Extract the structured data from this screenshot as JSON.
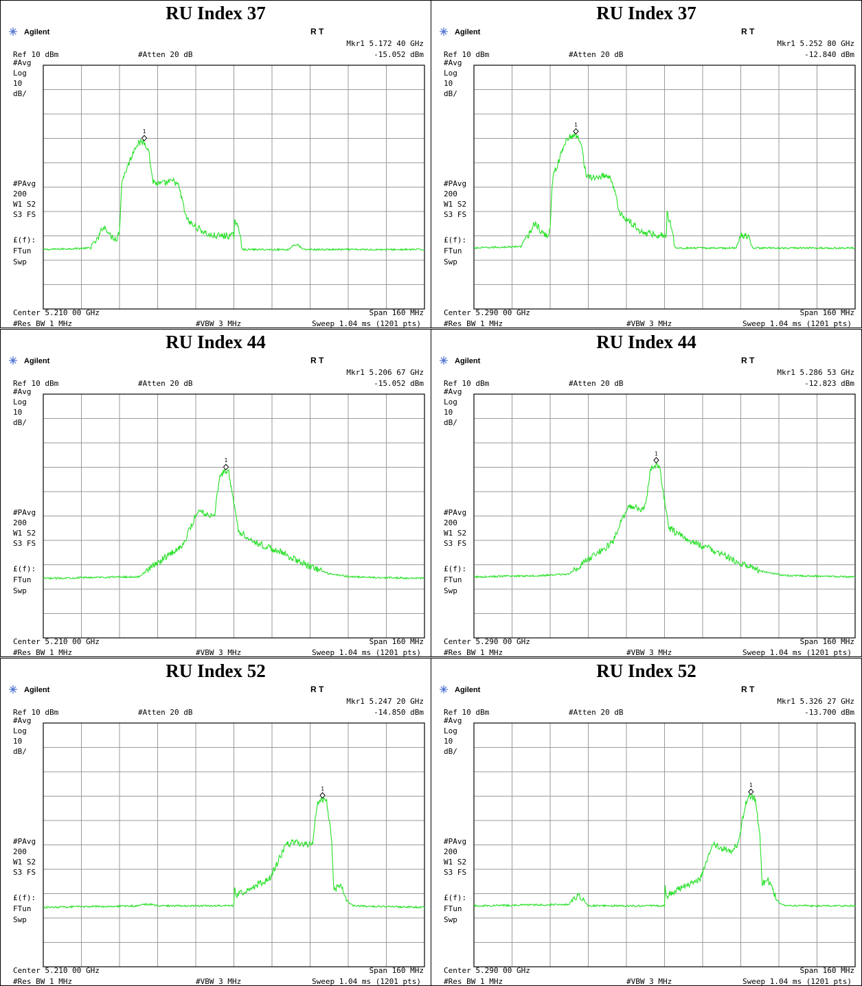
{
  "colors": {
    "trace": "#22e022",
    "grid": "#9a9a9a",
    "frame": "#000000",
    "text": "#000000"
  },
  "screen_common": {
    "brand": "Agilent",
    "brand_icon": "agilent-starburst-icon",
    "mode_flags": "R  T",
    "ref_level": "Ref 10 dBm",
    "attenuation": "#Atten 20 dB",
    "left_annotations": [
      "#Avg",
      "Log",
      "10",
      "dB/"
    ],
    "left_annotations_lower": [
      "#PAvg",
      "200",
      "W1  S2",
      "S3  FS"
    ],
    "left_annotations_bottom": [
      "£(f):",
      "FTun",
      "Swp"
    ],
    "span": "Span 160 MHz",
    "res_bw": "#Res BW 1 MHz",
    "vbw": "#VBW 3 MHz",
    "sweep": "Sweep 1.04 ms (1201 pts)",
    "marker_label": "1"
  },
  "chart_data": [
    {
      "type": "line",
      "panel_title": "RU Index 37",
      "center": "Center 5.210 00 GHz",
      "marker_freq": "Mkr1  5.172 40 GHz",
      "marker_level": "-15.052 dBm",
      "xlim_ghz": [
        5.13,
        5.29
      ],
      "ylim_dbm": [
        -70,
        10
      ],
      "marker_x": 5.1724,
      "marker_y": -15.052,
      "series": [
        {
          "x": [
            5.13,
            5.15,
            5.15,
            5.153,
            5.155,
            5.157,
            5.158,
            5.161,
            5.162,
            5.163,
            5.169,
            5.172,
            5.174,
            5.176,
            5.178,
            5.179,
            5.185,
            5.187,
            5.19,
            5.192,
            5.2,
            5.21,
            5.21,
            5.213,
            5.213,
            5.214,
            5.233,
            5.235,
            5.237,
            5.239,
            5.29
          ],
          "y": [
            -50.5,
            -50,
            -49,
            -47,
            -43,
            -44,
            -46,
            -47,
            -44,
            -28,
            -16,
            -15.1,
            -17,
            -28,
            -29,
            -29,
            -28,
            -30,
            -40,
            -42,
            -46,
            -46,
            -40,
            -46,
            -49.5,
            -50.5,
            -50.5,
            -49,
            -49,
            -50.5,
            -50.5
          ]
        }
      ]
    },
    {
      "type": "line",
      "panel_title": "RU Index 37",
      "center": "Center 5.290 00 GHz",
      "marker_freq": "Mkr1  5.252 80 GHz",
      "marker_level": "-12.840 dBm",
      "xlim_ghz": [
        5.21,
        5.37
      ],
      "ylim_dbm": [
        -70,
        10
      ],
      "marker_x": 5.2528,
      "marker_y": -12.84,
      "series": [
        {
          "x": [
            5.21,
            5.23,
            5.23,
            5.233,
            5.235,
            5.237,
            5.238,
            5.241,
            5.242,
            5.243,
            5.249,
            5.2528,
            5.255,
            5.257,
            5.259,
            5.26,
            5.266,
            5.268,
            5.271,
            5.273,
            5.281,
            5.291,
            5.291,
            5.294,
            5.294,
            5.295,
            5.32,
            5.322,
            5.325,
            5.327,
            5.37
          ],
          "y": [
            -50,
            -49.5,
            -48.5,
            -46,
            -42,
            -43,
            -45,
            -46,
            -43,
            -27,
            -14,
            -12.9,
            -15,
            -26,
            -27,
            -27,
            -26,
            -28,
            -38,
            -40,
            -45,
            -46,
            -38,
            -46,
            -49,
            -50,
            -50,
            -46,
            -46,
            -50,
            -50
          ]
        }
      ]
    },
    {
      "type": "line",
      "panel_title": "RU Index 44",
      "center": "Center 5.210 00 GHz",
      "marker_freq": "Mkr1  5.206 67 GHz",
      "marker_level": "-15.052 dBm",
      "xlim_ghz": [
        5.13,
        5.29
      ],
      "ylim_dbm": [
        -70,
        10
      ],
      "marker_x": 5.20667,
      "marker_y": -15.052,
      "series": [
        {
          "x": [
            5.13,
            5.16,
            5.17,
            5.175,
            5.182,
            5.188,
            5.19,
            5.195,
            5.198,
            5.2,
            5.202,
            5.204,
            5.20667,
            5.208,
            5.21,
            5.212,
            5.22,
            5.23,
            5.24,
            5.25,
            5.26,
            5.29
          ],
          "y": [
            -50.5,
            -50,
            -50,
            -47,
            -43,
            -40,
            -37,
            -28,
            -29,
            -30,
            -29,
            -17,
            -15.1,
            -16,
            -26,
            -35,
            -39,
            -42,
            -46,
            -49,
            -50,
            -50.5
          ]
        }
      ]
    },
    {
      "type": "line",
      "panel_title": "RU Index 44",
      "center": "Center 5.290 00 GHz",
      "marker_freq": "Mkr1  5.286 53 GHz",
      "marker_level": "-12.823 dBm",
      "xlim_ghz": [
        5.21,
        5.37
      ],
      "ylim_dbm": [
        -70,
        10
      ],
      "marker_x": 5.28653,
      "marker_y": -12.823,
      "series": [
        {
          "x": [
            5.21,
            5.24,
            5.25,
            5.255,
            5.262,
            5.268,
            5.27,
            5.275,
            5.278,
            5.28,
            5.282,
            5.284,
            5.28653,
            5.288,
            5.29,
            5.292,
            5.3,
            5.31,
            5.32,
            5.33,
            5.34,
            5.37
          ],
          "y": [
            -50,
            -49.5,
            -49,
            -46,
            -42,
            -39,
            -35,
            -27,
            -27,
            -28,
            -27,
            -15,
            -12.9,
            -14,
            -25,
            -34,
            -38,
            -41,
            -45,
            -48,
            -49.5,
            -50
          ]
        }
      ]
    },
    {
      "type": "line",
      "panel_title": "RU Index 52",
      "center": "Center 5.210 00 GHz",
      "marker_freq": "Mkr1  5.247 20 GHz",
      "marker_level": "-14.850 dBm",
      "xlim_ghz": [
        5.13,
        5.29
      ],
      "ylim_dbm": [
        -70,
        10
      ],
      "marker_x": 5.2472,
      "marker_y": -14.85,
      "series": [
        {
          "x": [
            5.13,
            5.17,
            5.172,
            5.175,
            5.178,
            5.21,
            5.21,
            5.211,
            5.212,
            5.215,
            5.225,
            5.232,
            5.236,
            5.24,
            5.243,
            5.245,
            5.2472,
            5.249,
            5.251,
            5.252,
            5.254,
            5.256,
            5.257,
            5.26,
            5.29
          ],
          "y": [
            -50.5,
            -50,
            -49.5,
            -49.5,
            -50,
            -50,
            -43,
            -47,
            -46,
            -45,
            -41,
            -30,
            -29,
            -30,
            -30,
            -16,
            -14.9,
            -16,
            -28,
            -45,
            -43,
            -45,
            -48,
            -50,
            -50.5
          ]
        }
      ]
    },
    {
      "type": "line",
      "panel_title": "RU Index 52",
      "center": "Center 5.290 00 GHz",
      "marker_freq": "Mkr1  5.326 27 GHz",
      "marker_level": "-13.700 dBm",
      "xlim_ghz": [
        5.21,
        5.37
      ],
      "ylim_dbm": [
        -70,
        10
      ],
      "marker_x": 5.32627,
      "marker_y": -13.7,
      "series": [
        {
          "x": [
            5.21,
            5.25,
            5.252,
            5.255,
            5.258,
            5.29,
            5.29,
            5.291,
            5.292,
            5.295,
            5.305,
            5.31,
            5.314,
            5.318,
            5.321,
            5.324,
            5.32627,
            5.328,
            5.33,
            5.331,
            5.333,
            5.335,
            5.337,
            5.34,
            5.37
          ],
          "y": [
            -50,
            -49.5,
            -47,
            -47,
            -50,
            -50,
            -43,
            -47,
            -46,
            -45,
            -41,
            -30,
            -31,
            -32,
            -30,
            -16,
            -13.8,
            -15,
            -27,
            -43,
            -41,
            -44,
            -48,
            -50,
            -50
          ]
        }
      ]
    }
  ]
}
